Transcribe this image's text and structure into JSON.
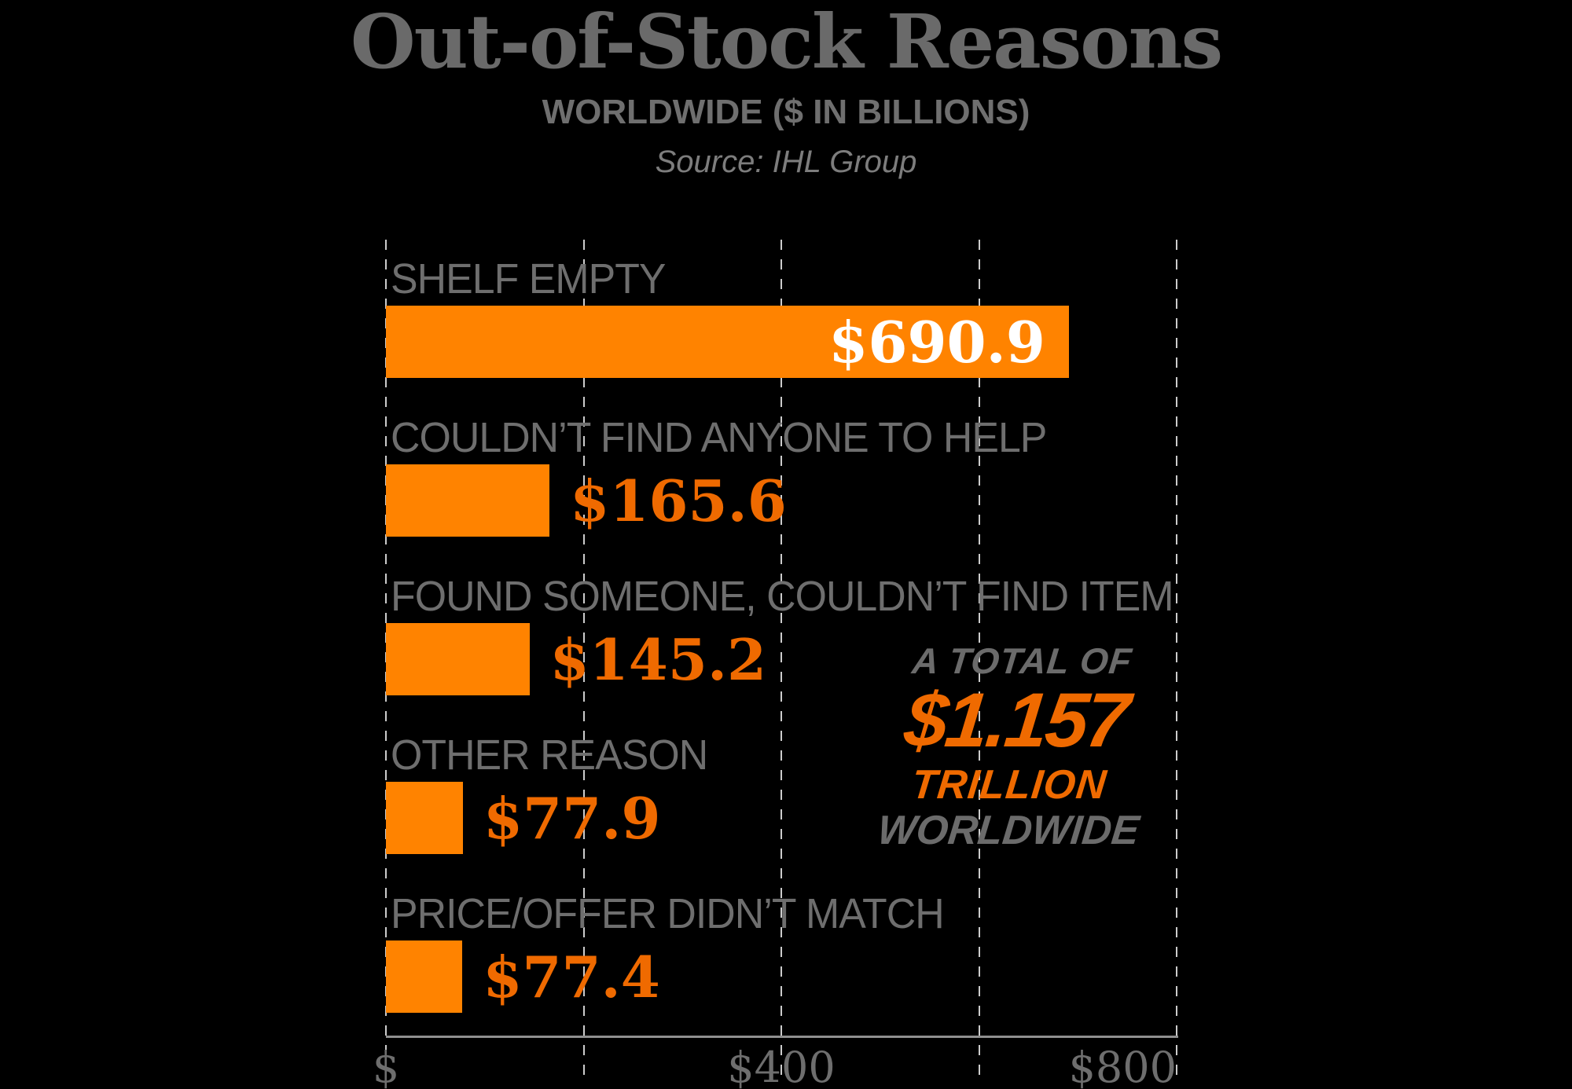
{
  "header": {
    "title": "Out-of-Stock Reasons",
    "subtitle": "WORLDWIDE ($ IN BILLIONS)",
    "source": "Source: IHL Group"
  },
  "chart_data": {
    "type": "bar",
    "orientation": "horizontal",
    "unit": "USD billions",
    "categories": [
      "SHELF EMPTY",
      "COULDN’T FIND ANYONE TO HELP",
      "FOUND SOMEONE, COULDN’T FIND ITEM",
      "OTHER REASON",
      "PRICE/OFFER DIDN’T MATCH"
    ],
    "values": [
      690.9,
      165.6,
      145.2,
      77.9,
      77.4
    ],
    "value_labels": [
      "$690.9",
      "$165.6",
      "$145.2",
      "$77.9",
      "$77.4"
    ],
    "xlim": [
      0,
      800
    ],
    "gridline_values": [
      0,
      200,
      400,
      600,
      800
    ],
    "grid": "dashed-vertical",
    "axis_ticks": [
      {
        "label": "$",
        "value": 0
      },
      {
        "label": "$400",
        "value": 400
      },
      {
        "label": "$800",
        "value": 800
      }
    ],
    "annotation": {
      "line1": "A TOTAL OF",
      "line2": "$1.157",
      "line3": "TRILLION",
      "line4": "WORLDWIDE"
    }
  },
  "colors": {
    "background": "#000000",
    "bar": "#ff8300",
    "value_text_outside": "#ef6a00",
    "value_text_inside": "#ffffff",
    "category_label": "#6e6e6e",
    "title": "#6a6a6a",
    "gridline": "#cccccc",
    "axis_line": "#8f8f8f",
    "annotation_gray": "#6b6b6b",
    "annotation_orange": "#ef6a00"
  }
}
